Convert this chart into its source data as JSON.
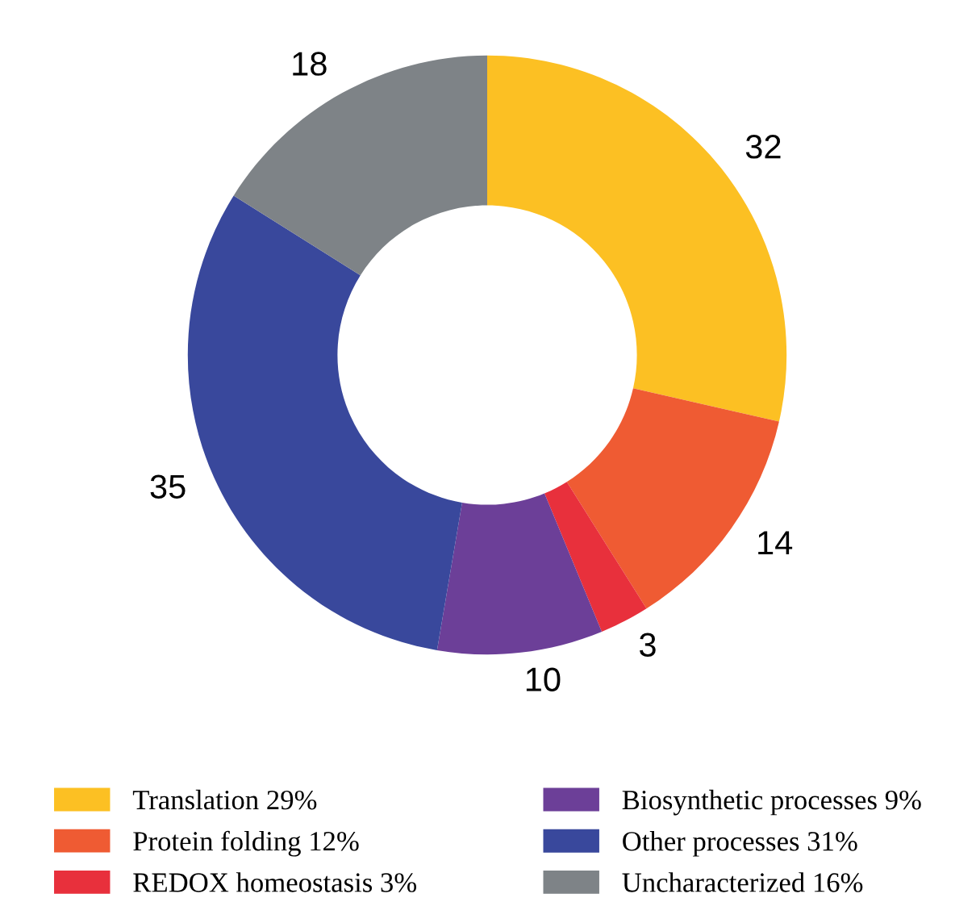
{
  "chart_data": {
    "type": "donut",
    "categories": [
      "Translation 29%",
      "Protein folding 12%",
      "REDOX homeostasis 3%",
      "Biosynthetic processes 9%",
      "Other processes 31%",
      "Uncharacterized 16%"
    ],
    "values": [
      32,
      14,
      3,
      10,
      35,
      18
    ],
    "colors": [
      "#fcc023",
      "#ef5b33",
      "#e8303c",
      "#6c3f98",
      "#39489c",
      "#7e8387"
    ],
    "data_labels": true,
    "legend": "bottom"
  }
}
